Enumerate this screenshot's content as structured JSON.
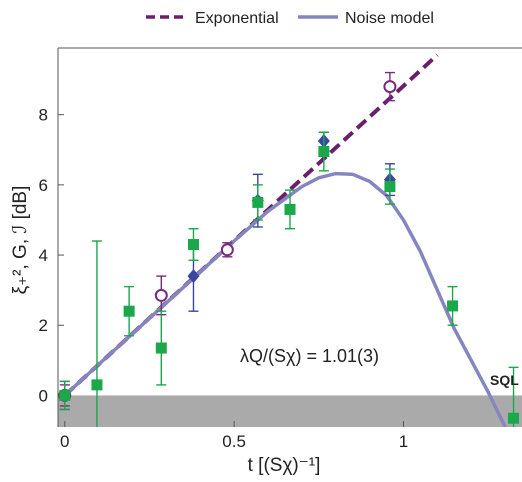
{
  "chart_data": {
    "type": "scatter",
    "title": "",
    "xlabel": "t [(Sχ)⁻¹]",
    "ylabel": "ξ₊², G, ℐ [dB]",
    "xlim": [
      -0.02,
      1.35
    ],
    "ylim": [
      -0.9,
      9.9
    ],
    "xticks": [
      0,
      0.5,
      1
    ],
    "xtick_labels": [
      "0",
      "0.5",
      "1"
    ],
    "yticks": [
      0,
      2,
      4,
      6,
      8
    ],
    "ytick_labels": [
      "0",
      "2",
      "4",
      "6",
      "8"
    ],
    "legend": {
      "placement": "top-outside",
      "entries": [
        "Exponential",
        "Noise model"
      ]
    },
    "annotation": "λQ/(Sχ) = 1.01(3)",
    "sql_label": "SQL",
    "sql_band": {
      "y_from": -0.9,
      "y_to": 0
    },
    "lines": [
      {
        "name": "Exponential",
        "style": "dashed",
        "color": "#6b1f6b",
        "x": [
          0,
          1.1
        ],
        "y": [
          0,
          9.7
        ]
      },
      {
        "name": "Noise model",
        "style": "solid",
        "color": "#8585c0",
        "x": [
          0,
          0.1,
          0.2,
          0.3,
          0.4,
          0.5,
          0.6,
          0.7,
          0.75,
          0.8,
          0.85,
          0.9,
          0.95,
          1.0,
          1.05,
          1.1,
          1.15,
          1.2,
          1.25,
          1.3
        ],
        "y": [
          0,
          0.88,
          1.76,
          2.64,
          3.52,
          4.4,
          5.25,
          5.95,
          6.2,
          6.32,
          6.3,
          6.1,
          5.7,
          5.0,
          4.1,
          3.0,
          1.9,
          1.0,
          0.1,
          -0.9
        ]
      }
    ],
    "series": [
      {
        "marker": "open-circle",
        "color": "#7a2a7a",
        "x": [
          0,
          0.285,
          0.48,
          0.96
        ],
        "y": [
          0.0,
          2.85,
          4.15,
          8.8
        ],
        "err": [
          0.3,
          0.55,
          0.2,
          0.4
        ]
      },
      {
        "marker": "diamond",
        "color": "#3a46a0",
        "x": [
          0,
          0.38,
          0.57,
          0.765,
          0.96
        ],
        "y": [
          0.0,
          3.4,
          5.55,
          7.25,
          6.15
        ],
        "err": [
          0.4,
          1.0,
          0.75,
          0.25,
          0.45
        ]
      },
      {
        "marker": "square",
        "color": "#1aa84a",
        "x": [
          0,
          0.095,
          0.19,
          0.285,
          0.38,
          0.57,
          0.665,
          0.765,
          0.96,
          1.145,
          1.325
        ],
        "y": [
          0.0,
          0.3,
          2.4,
          1.35,
          4.3,
          5.5,
          5.3,
          6.95,
          5.95,
          2.55,
          -0.65
        ],
        "err": [
          0.4,
          4.1,
          0.7,
          1.05,
          0.45,
          0.5,
          0.55,
          0.55,
          0.5,
          0.55,
          1.45
        ]
      }
    ]
  }
}
